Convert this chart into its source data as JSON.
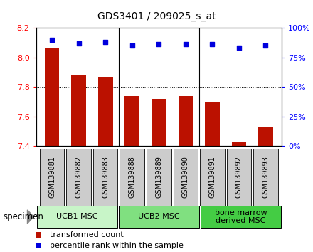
{
  "title": "GDS3401 / 209025_s_at",
  "samples": [
    "GSM139881",
    "GSM139882",
    "GSM139883",
    "GSM139888",
    "GSM139889",
    "GSM139890",
    "GSM139891",
    "GSM139892",
    "GSM139893"
  ],
  "bar_values": [
    8.06,
    7.88,
    7.87,
    7.74,
    7.72,
    7.74,
    7.7,
    7.43,
    7.53
  ],
  "dot_values": [
    90,
    87,
    88,
    85,
    86,
    86,
    86,
    83,
    85
  ],
  "groups": [
    {
      "label": "UCB1 MSC",
      "start": 0,
      "end": 3,
      "color": "#c8f5c8"
    },
    {
      "label": "UCB2 MSC",
      "start": 3,
      "end": 6,
      "color": "#80e080"
    },
    {
      "label": "bone marrow\nderived MSC",
      "start": 6,
      "end": 9,
      "color": "#44cc44"
    }
  ],
  "ylim_left": [
    7.4,
    8.2
  ],
  "ylim_right": [
    0,
    100
  ],
  "yticks_left": [
    7.4,
    7.6,
    7.8,
    8.0,
    8.2
  ],
  "yticks_right": [
    0,
    25,
    50,
    75,
    100
  ],
  "bar_color": "#bb1100",
  "dot_color": "#0000dd",
  "bar_width": 0.55,
  "grid_color": "black",
  "background_color": "#ffffff",
  "specimen_label": "specimen",
  "legend_bar": "transformed count",
  "legend_dot": "percentile rank within the sample",
  "xlabel_bg": "#cccccc",
  "title_fontsize": 10,
  "tick_fontsize": 8,
  "sample_fontsize": 7
}
